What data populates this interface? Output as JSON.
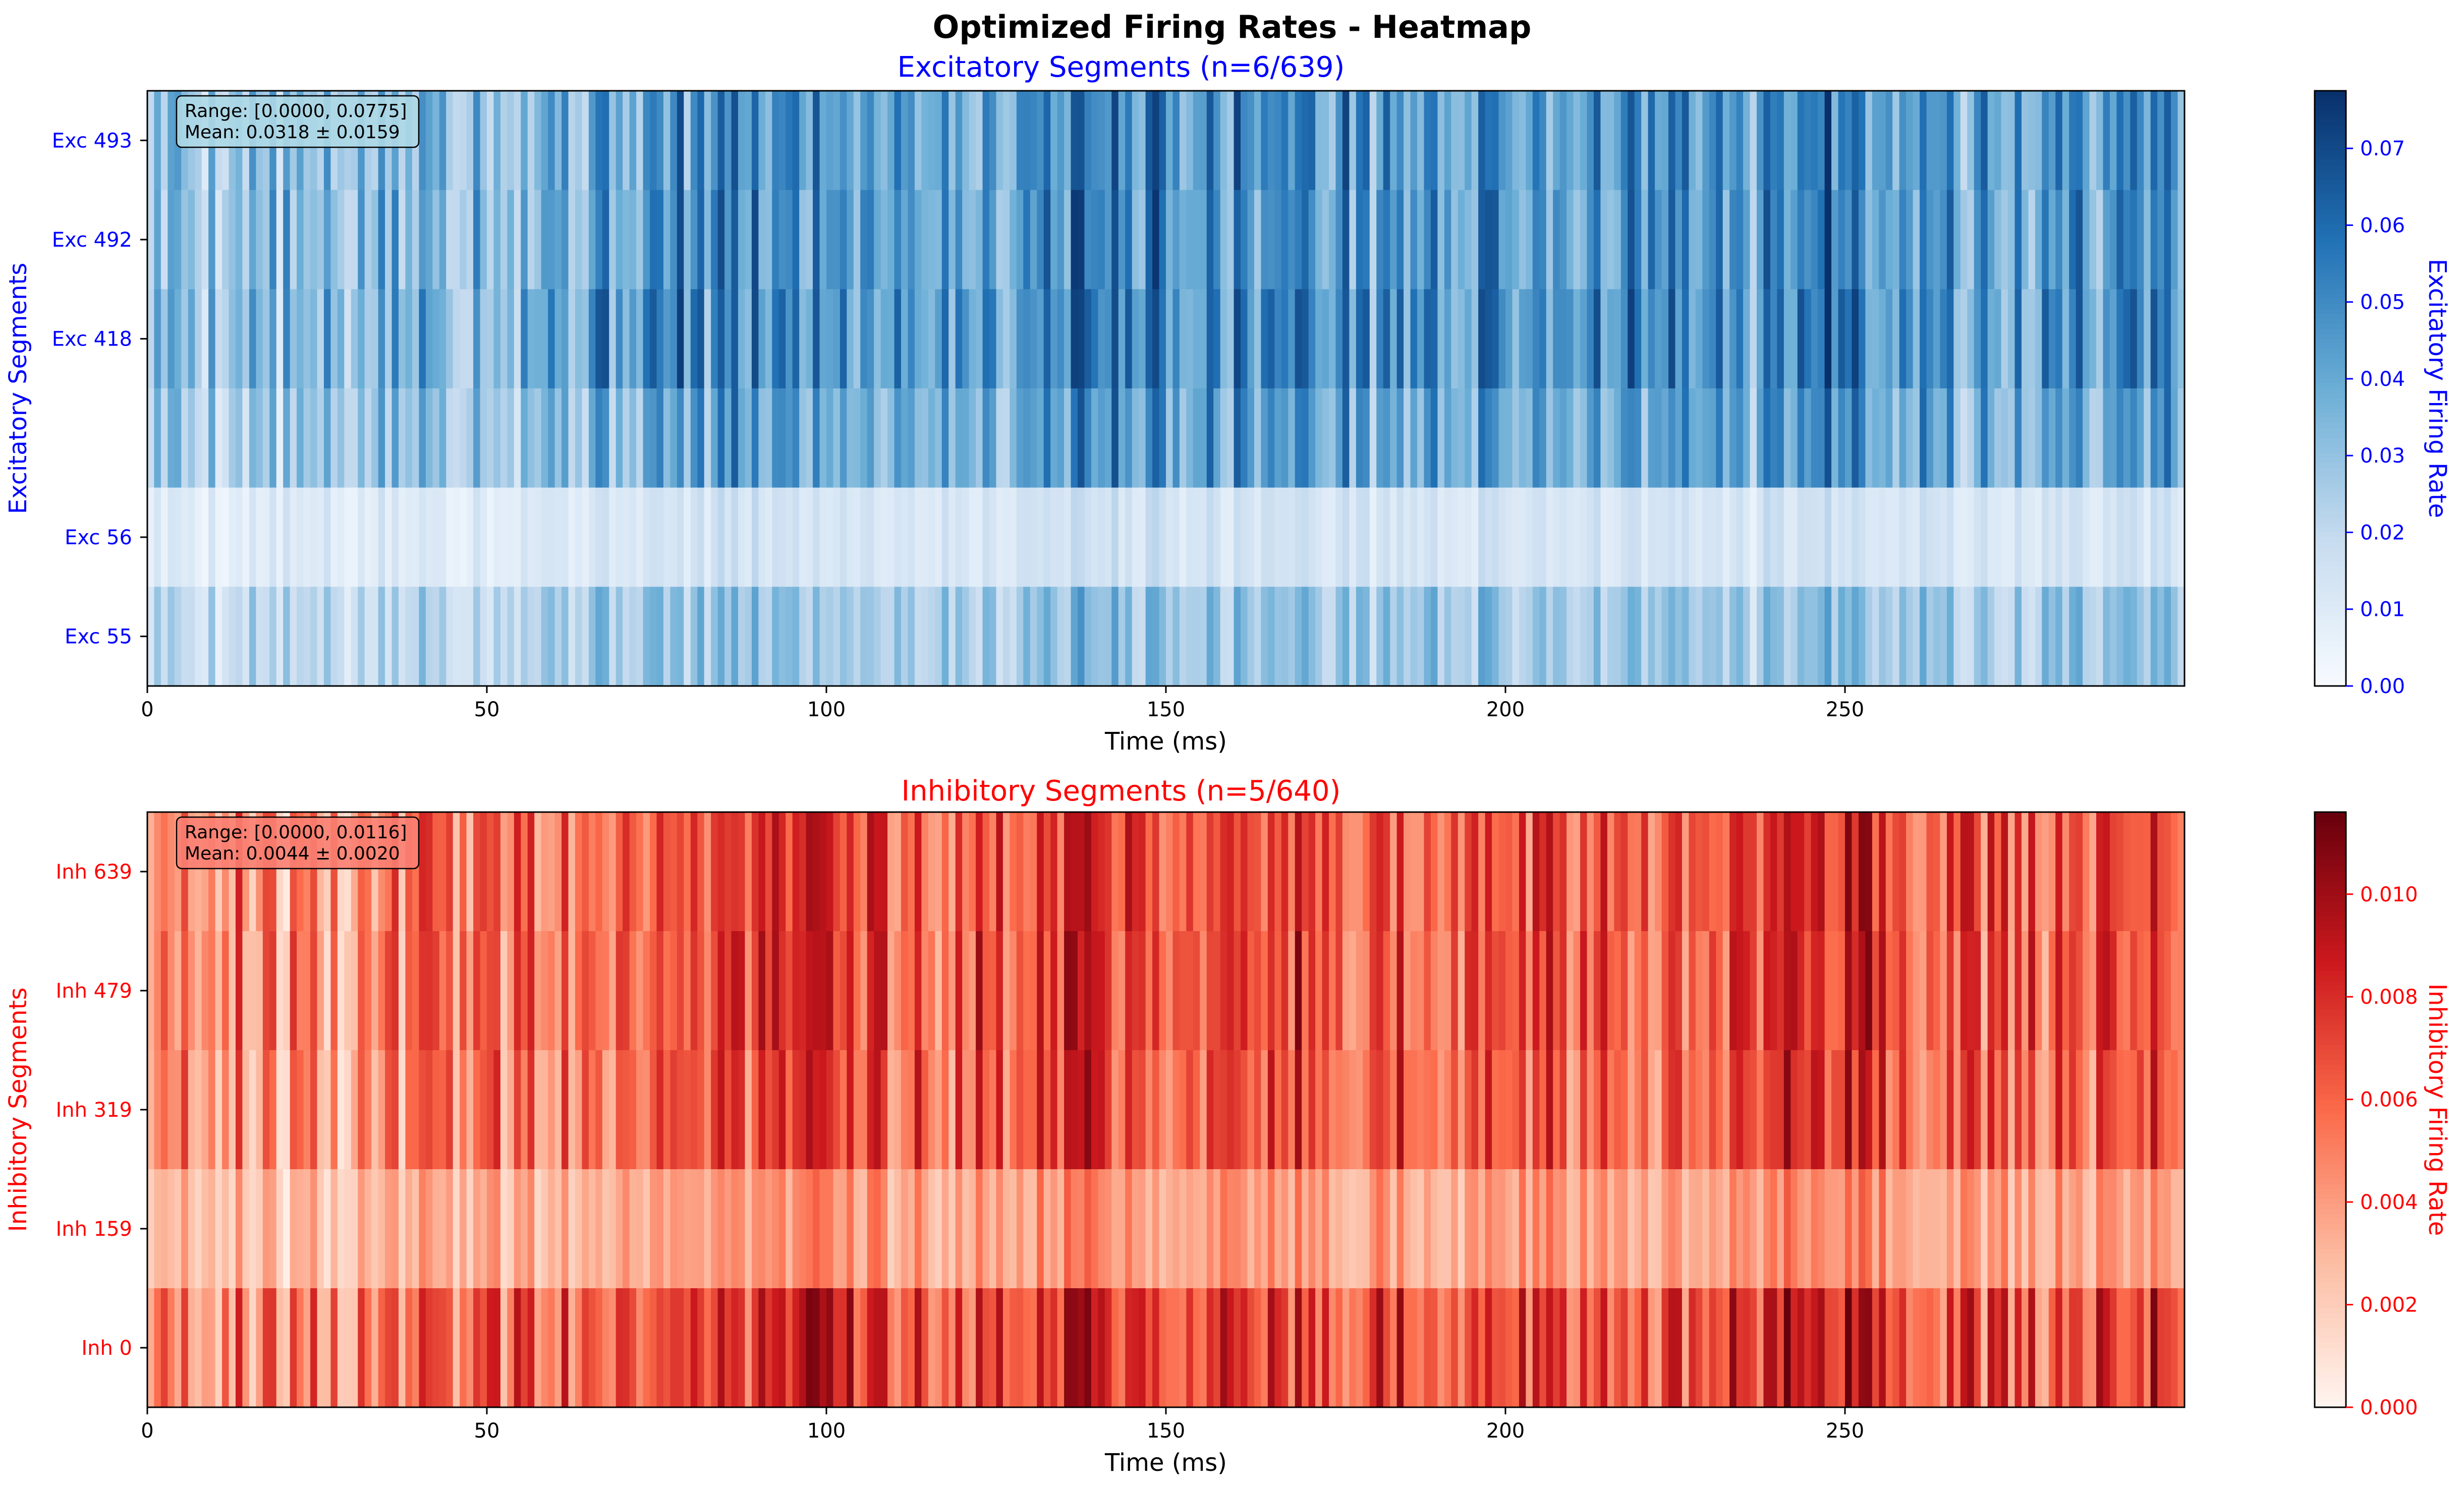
{
  "title": "Optimized Firing Rates - Heatmap",
  "colors": {
    "excitatory": "#0000ff",
    "inhibitory": "#ff0000"
  },
  "chart_data": [
    {
      "type": "heatmap",
      "title": "Excitatory Segments (n=6/639)",
      "xlabel": "Time (ms)",
      "ylabel": "Excitatory Segments",
      "colorbar_label": "Excitatory Firing Rate",
      "colormap": "Blues",
      "vlim": [
        0,
        0.0775
      ],
      "colorbar_ticks": [
        "0.00",
        "0.01",
        "0.02",
        "0.03",
        "0.04",
        "0.05",
        "0.06",
        "0.07"
      ],
      "colorbar_tick_values": [
        0,
        0.01,
        0.02,
        0.03,
        0.04,
        0.05,
        0.06,
        0.07
      ],
      "xlim": [
        0,
        300
      ],
      "x_ticks": [
        "0",
        "50",
        "100",
        "150",
        "200",
        "250"
      ],
      "x_tick_values": [
        0,
        50,
        100,
        150,
        200,
        250
      ],
      "rows": [
        {
          "label": "Exc 493",
          "scale": 0.95,
          "seed": 11
        },
        {
          "label": "Exc 492",
          "scale": 0.95,
          "seed": 12
        },
        {
          "label": "Exc 418",
          "scale": 1.0,
          "seed": 13
        },
        {
          "label": "",
          "scale": 0.85,
          "seed": 14
        },
        {
          "label": "Exc 56",
          "scale": 0.28,
          "seed": 15
        },
        {
          "label": "Exc 55",
          "scale": 0.6,
          "seed": 16
        }
      ],
      "stats": {
        "range": "Range: [0.0000, 0.0775]",
        "mean": "Mean: 0.0318 ± 0.0159"
      },
      "profile": [
        {
          "t": 0,
          "v": 0.35
        },
        {
          "t": 15,
          "v": 0.3
        },
        {
          "t": 25,
          "v": 0.2
        },
        {
          "t": 35,
          "v": 0.3
        },
        {
          "t": 45,
          "v": 0.45
        },
        {
          "t": 55,
          "v": 0.45
        },
        {
          "t": 65,
          "v": 0.55
        },
        {
          "t": 75,
          "v": 0.6
        },
        {
          "t": 90,
          "v": 0.7
        },
        {
          "t": 110,
          "v": 0.65
        },
        {
          "t": 125,
          "v": 0.55
        },
        {
          "t": 135,
          "v": 0.85
        },
        {
          "t": 150,
          "v": 0.75
        },
        {
          "t": 165,
          "v": 0.7
        },
        {
          "t": 180,
          "v": 0.65
        },
        {
          "t": 195,
          "v": 0.6
        },
        {
          "t": 210,
          "v": 0.65
        },
        {
          "t": 225,
          "v": 0.6
        },
        {
          "t": 235,
          "v": 0.5
        },
        {
          "t": 248,
          "v": 0.92
        },
        {
          "t": 260,
          "v": 0.7
        },
        {
          "t": 270,
          "v": 0.45
        },
        {
          "t": 285,
          "v": 0.6
        },
        {
          "t": 300,
          "v": 0.65
        }
      ]
    },
    {
      "type": "heatmap",
      "title": "Inhibitory Segments (n=5/640)",
      "xlabel": "Time (ms)",
      "ylabel": "Inhibitory Segments",
      "colorbar_label": "Inhibitory Firing Rate",
      "colormap": "Reds",
      "vlim": [
        0,
        0.0116
      ],
      "colorbar_ticks": [
        "0.000",
        "0.002",
        "0.004",
        "0.006",
        "0.008",
        "0.010"
      ],
      "colorbar_tick_values": [
        0,
        0.002,
        0.004,
        0.006,
        0.008,
        0.01
      ],
      "xlim": [
        0,
        300
      ],
      "x_ticks": [
        "0",
        "50",
        "100",
        "150",
        "200",
        "250"
      ],
      "x_tick_values": [
        0,
        50,
        100,
        150,
        200,
        250
      ],
      "rows": [
        {
          "label": "Inh 639",
          "scale": 0.95,
          "seed": 21
        },
        {
          "label": "Inh 479",
          "scale": 0.95,
          "seed": 22
        },
        {
          "label": "Inh 319",
          "scale": 0.9,
          "seed": 23
        },
        {
          "label": "Inh 159",
          "scale": 0.55,
          "seed": 24
        },
        {
          "label": "Inh 0",
          "scale": 1.0,
          "seed": 25
        }
      ],
      "stats": {
        "range": "Range: [0.0000, 0.0116]",
        "mean": "Mean: 0.0044 ± 0.0020"
      },
      "profile": [
        {
          "t": 0,
          "v": 0.35
        },
        {
          "t": 15,
          "v": 0.3
        },
        {
          "t": 25,
          "v": 0.15
        },
        {
          "t": 35,
          "v": 0.3
        },
        {
          "t": 45,
          "v": 0.45
        },
        {
          "t": 55,
          "v": 0.45
        },
        {
          "t": 65,
          "v": 0.55
        },
        {
          "t": 75,
          "v": 0.6
        },
        {
          "t": 90,
          "v": 0.65
        },
        {
          "t": 110,
          "v": 0.6
        },
        {
          "t": 125,
          "v": 0.55
        },
        {
          "t": 135,
          "v": 0.85
        },
        {
          "t": 150,
          "v": 0.75
        },
        {
          "t": 165,
          "v": 0.7
        },
        {
          "t": 180,
          "v": 0.65
        },
        {
          "t": 195,
          "v": 0.55
        },
        {
          "t": 210,
          "v": 0.65
        },
        {
          "t": 225,
          "v": 0.6
        },
        {
          "t": 235,
          "v": 0.5
        },
        {
          "t": 248,
          "v": 0.92
        },
        {
          "t": 260,
          "v": 0.7
        },
        {
          "t": 270,
          "v": 0.45
        },
        {
          "t": 285,
          "v": 0.6
        },
        {
          "t": 300,
          "v": 0.65
        }
      ]
    }
  ]
}
